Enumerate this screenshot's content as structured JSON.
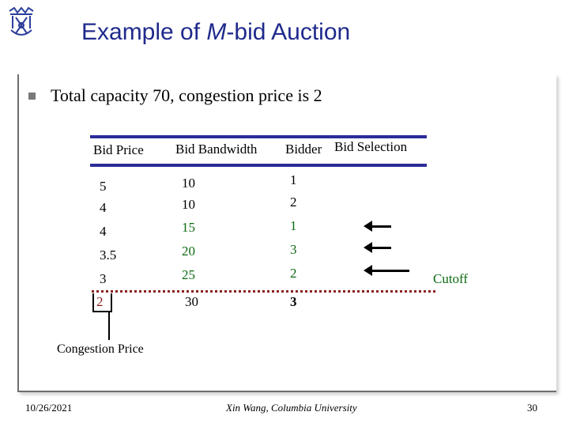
{
  "slide": {
    "title_part1": "Example of ",
    "title_italic": "M",
    "title_part2": "-bid Auction",
    "bullet": "Total capacity 70, congestion price is 2"
  },
  "table": {
    "headers": [
      "Bid Price",
      "Bid Bandwidth",
      "Bidder",
      "Bid Selection"
    ],
    "rows": [
      {
        "price": "5",
        "bandwidth": "10",
        "bidder": "1"
      },
      {
        "price": "4",
        "bandwidth": "10",
        "bidder": "2"
      },
      {
        "price": "4",
        "bandwidth": "15",
        "bidder": "1"
      },
      {
        "price": "3.5",
        "bandwidth": "20",
        "bidder": "3"
      },
      {
        "price": "3",
        "bandwidth": "25",
        "bidder": "2"
      },
      {
        "price": "2",
        "bandwidth": "30",
        "bidder": "3"
      }
    ]
  },
  "annotations": {
    "cutoff": "Cutoff",
    "congestion_price": "Congestion Price"
  },
  "footer": {
    "date": "10/26/2021",
    "author": "Xin Wang, Columbia University",
    "page": "30"
  },
  "colors": {
    "title": "#1f2a8c",
    "table_rule": "#2c2c9a",
    "green_text": "#0d6a12",
    "cutoff_line": "#8b1f1f"
  },
  "icons": {
    "logo": "columbia-crown-logo-icon",
    "bullet": "square-bullet-icon",
    "selection_arrow": "left-arrow-icon"
  }
}
